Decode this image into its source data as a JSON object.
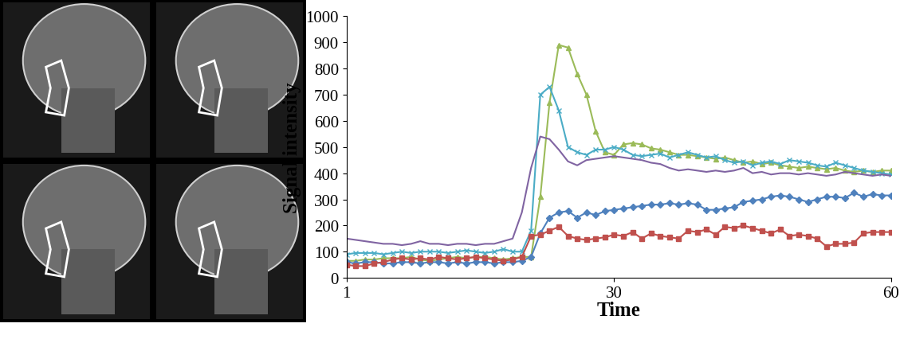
{
  "chart_data": {
    "type": "line",
    "x_label": "Time",
    "y_label": "Signal intensity",
    "x": [
      1,
      2,
      3,
      4,
      5,
      6,
      7,
      8,
      9,
      10,
      11,
      12,
      13,
      14,
      15,
      16,
      17,
      18,
      19,
      20,
      21,
      22,
      23,
      24,
      25,
      26,
      27,
      28,
      29,
      30,
      31,
      32,
      33,
      34,
      35,
      36,
      37,
      38,
      39,
      40,
      41,
      42,
      43,
      44,
      45,
      46,
      47,
      48,
      49,
      50,
      51,
      52,
      53,
      54,
      55,
      56,
      57,
      58,
      59,
      60
    ],
    "xlim": [
      1,
      60
    ],
    "xticks": [
      1,
      30,
      60
    ],
    "ylim": [
      0,
      1000
    ],
    "yticks": [
      0,
      100,
      200,
      300,
      400,
      500,
      600,
      700,
      800,
      900,
      1000
    ],
    "grid": false,
    "series": [
      {
        "color": "#9bbb59",
        "marker": "triangle",
        "values": [
          65,
          65,
          70,
          70,
          75,
          75,
          75,
          80,
          70,
          65,
          70,
          75,
          80,
          75,
          80,
          80,
          75,
          70,
          75,
          80,
          80,
          310,
          670,
          890,
          880,
          780,
          700,
          560,
          480,
          470,
          510,
          515,
          510,
          495,
          490,
          480,
          470,
          470,
          465,
          460,
          455,
          460,
          450,
          440,
          445,
          435,
          440,
          430,
          425,
          420,
          425,
          420,
          415,
          420,
          410,
          405,
          410,
          405,
          410,
          410
        ]
      },
      {
        "color": "#4bacc6",
        "marker": "x",
        "values": [
          90,
          95,
          95,
          95,
          90,
          95,
          100,
          95,
          100,
          100,
          100,
          95,
          100,
          105,
          100,
          95,
          100,
          110,
          100,
          100,
          180,
          700,
          730,
          640,
          500,
          480,
          470,
          490,
          490,
          500,
          490,
          470,
          465,
          470,
          475,
          460,
          470,
          480,
          470,
          460,
          465,
          450,
          440,
          445,
          430,
          440,
          445,
          435,
          450,
          445,
          440,
          430,
          425,
          440,
          430,
          420,
          410,
          405,
          400,
          395
        ]
      },
      {
        "color": "#8064a2",
        "marker": "none",
        "values": [
          150,
          145,
          140,
          135,
          130,
          130,
          125,
          130,
          140,
          130,
          130,
          125,
          130,
          130,
          125,
          130,
          130,
          140,
          150,
          250,
          420,
          540,
          530,
          490,
          445,
          430,
          450,
          455,
          460,
          465,
          460,
          455,
          450,
          440,
          435,
          420,
          410,
          415,
          410,
          405,
          410,
          405,
          410,
          420,
          400,
          405,
          395,
          400,
          400,
          395,
          400,
          395,
          390,
          395,
          405,
          400,
          395,
          390,
          395,
          390
        ]
      },
      {
        "color": "#4f81bd",
        "marker": "diamond",
        "values": [
          60,
          55,
          60,
          60,
          55,
          55,
          60,
          60,
          55,
          60,
          60,
          55,
          60,
          55,
          60,
          60,
          55,
          60,
          60,
          65,
          80,
          170,
          230,
          250,
          255,
          230,
          250,
          240,
          255,
          260,
          265,
          270,
          275,
          280,
          280,
          285,
          280,
          285,
          280,
          260,
          260,
          265,
          270,
          290,
          295,
          300,
          310,
          315,
          310,
          300,
          290,
          300,
          310,
          310,
          305,
          325,
          310,
          320,
          315,
          315
        ]
      },
      {
        "color": "#c0504d",
        "marker": "square",
        "values": [
          50,
          45,
          45,
          55,
          60,
          70,
          75,
          70,
          75,
          70,
          80,
          75,
          70,
          75,
          80,
          75,
          70,
          65,
          70,
          80,
          160,
          165,
          180,
          195,
          160,
          150,
          145,
          150,
          155,
          165,
          160,
          175,
          150,
          170,
          160,
          155,
          150,
          180,
          175,
          185,
          165,
          195,
          190,
          200,
          190,
          180,
          170,
          185,
          160,
          165,
          160,
          150,
          120,
          130,
          130,
          135,
          170,
          175,
          175,
          175
        ]
      }
    ]
  }
}
